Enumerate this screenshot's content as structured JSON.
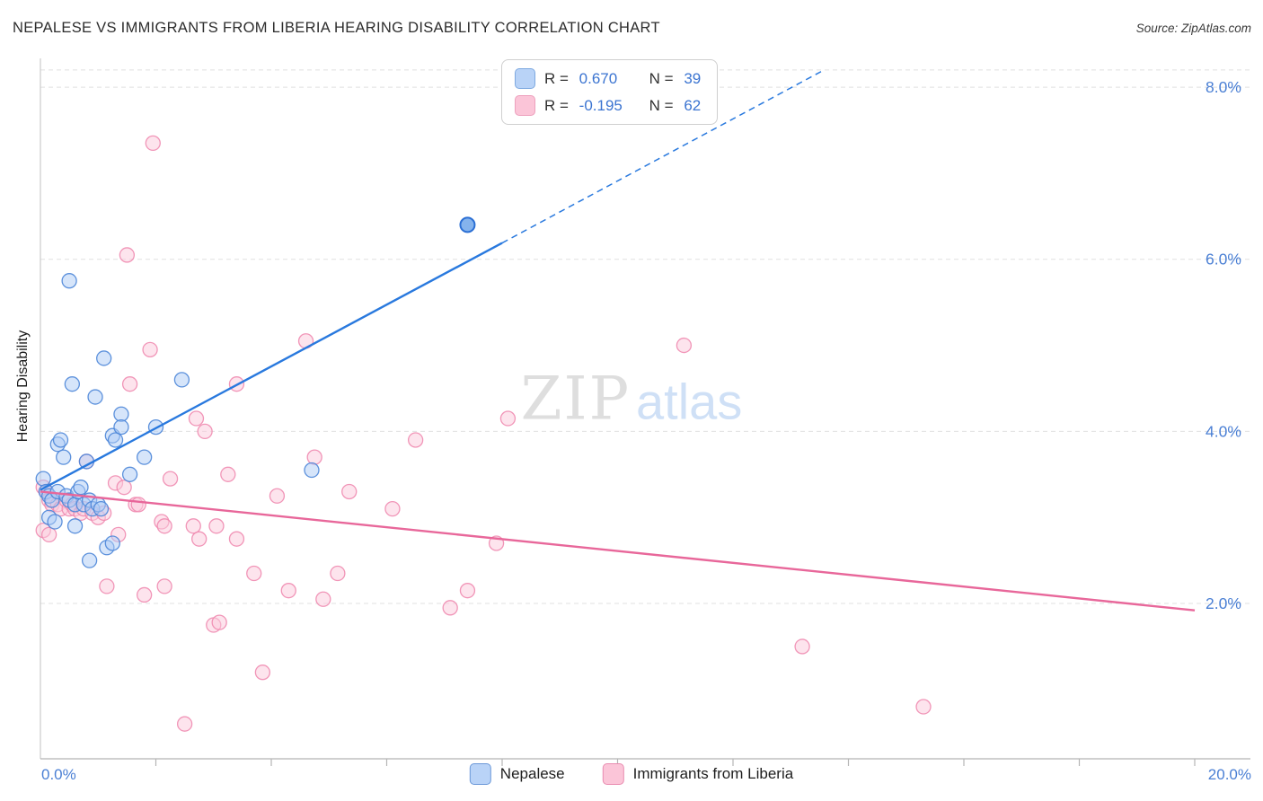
{
  "header": {
    "title": "NEPALESE VS IMMIGRANTS FROM LIBERIA HEARING DISABILITY CORRELATION CHART",
    "source": "Source: ZipAtlas.com"
  },
  "axes": {
    "y_label": "Hearing Disability",
    "x_min_label": "0.0%",
    "x_max_label": "20.0%"
  },
  "watermark": {
    "zip": "ZIP",
    "atlas": "atlas"
  },
  "legend_box": {
    "rows": [
      {
        "r_label": "R = ",
        "r_value": "0.670",
        "n_label": "N = ",
        "n_value": "39",
        "swatch_color": "#b9d3f7"
      },
      {
        "r_label": "R = ",
        "r_value": "-0.195",
        "n_label": "N = ",
        "n_value": "62",
        "swatch_color": "#fbc5d8"
      }
    ]
  },
  "bottom_legend": [
    {
      "label": "Nepalese",
      "color": "#b9d3f7"
    },
    {
      "label": "Immigrants from Liberia",
      "color": "#fbc5d8"
    }
  ],
  "chart_data": {
    "type": "scatter",
    "title": "NEPALESE VS IMMIGRANTS FROM LIBERIA HEARING DISABILITY CORRELATION CHART",
    "ylabel": "Hearing Disability",
    "xlim": [
      0,
      20
    ],
    "ylim": [
      0.195,
      8.335
    ],
    "x_ticks": [
      2,
      4,
      6,
      8,
      10,
      12,
      14,
      16,
      18,
      20
    ],
    "y_ticks": [
      {
        "value": 8,
        "label": "8.0%"
      },
      {
        "value": 6,
        "label": "6.0%"
      },
      {
        "value": 4,
        "label": "4.0%"
      },
      {
        "value": 2,
        "label": "2.0%"
      }
    ],
    "gridlines": [
      2,
      4,
      6,
      8,
      8.2
    ],
    "grid_on": true,
    "legend_position": "bottom",
    "series": [
      {
        "name": "Immigrants from Liberia",
        "r": -0.195,
        "n": 62,
        "fill": "#fbc9db",
        "stroke": "#ef8bb0",
        "points": [
          [
            1.95,
            7.35
          ],
          [
            1.5,
            6.05
          ],
          [
            1.9,
            4.95
          ],
          [
            4.6,
            5.05
          ],
          [
            11.15,
            5.0
          ],
          [
            1.55,
            4.55
          ],
          [
            3.4,
            4.55
          ],
          [
            2.7,
            4.15
          ],
          [
            2.85,
            4.0
          ],
          [
            8.1,
            4.15
          ],
          [
            6.5,
            3.9
          ],
          [
            4.75,
            3.7
          ],
          [
            0.8,
            3.65
          ],
          [
            3.25,
            3.5
          ],
          [
            5.35,
            3.3
          ],
          [
            4.1,
            3.25
          ],
          [
            6.1,
            3.1
          ],
          [
            0.05,
            3.35
          ],
          [
            0.1,
            3.3
          ],
          [
            0.15,
            3.2
          ],
          [
            0.2,
            3.15
          ],
          [
            0.3,
            3.15
          ],
          [
            0.35,
            3.1
          ],
          [
            0.45,
            3.2
          ],
          [
            0.5,
            3.1
          ],
          [
            0.55,
            3.15
          ],
          [
            0.6,
            3.1
          ],
          [
            0.7,
            3.05
          ],
          [
            0.75,
            3.1
          ],
          [
            0.9,
            3.05
          ],
          [
            1.0,
            3.0
          ],
          [
            1.1,
            3.05
          ],
          [
            1.3,
            3.4
          ],
          [
            1.65,
            3.15
          ],
          [
            1.7,
            3.15
          ],
          [
            2.1,
            2.95
          ],
          [
            2.15,
            2.9
          ],
          [
            1.35,
            2.8
          ],
          [
            0.05,
            2.85
          ],
          [
            0.15,
            2.8
          ],
          [
            2.65,
            2.9
          ],
          [
            3.05,
            2.9
          ],
          [
            2.75,
            2.75
          ],
          [
            3.4,
            2.75
          ],
          [
            7.9,
            2.7
          ],
          [
            3.7,
            2.35
          ],
          [
            5.15,
            2.35
          ],
          [
            1.15,
            2.2
          ],
          [
            2.15,
            2.2
          ],
          [
            4.3,
            2.15
          ],
          [
            7.4,
            2.15
          ],
          [
            1.8,
            2.1
          ],
          [
            4.9,
            2.05
          ],
          [
            7.1,
            1.95
          ],
          [
            3.0,
            1.75
          ],
          [
            3.1,
            1.78
          ],
          [
            13.2,
            1.5
          ],
          [
            3.85,
            1.2
          ],
          [
            15.3,
            0.8
          ],
          [
            2.5,
            0.6
          ],
          [
            2.25,
            3.45
          ],
          [
            1.45,
            3.35
          ]
        ]
      },
      {
        "name": "Nepalese",
        "r": 0.67,
        "n": 39,
        "fill": "#aecbf5",
        "stroke": "#4d86d8",
        "highlight": [
          7.4,
          6.4
        ],
        "highlight_fill": "#7fb0ec",
        "highlight_stroke": "#2b6fd4",
        "points": [
          [
            0.05,
            3.45
          ],
          [
            0.1,
            3.3
          ],
          [
            0.15,
            3.25
          ],
          [
            0.2,
            3.2
          ],
          [
            0.3,
            3.3
          ],
          [
            0.3,
            3.85
          ],
          [
            0.35,
            3.9
          ],
          [
            0.4,
            3.7
          ],
          [
            0.45,
            3.25
          ],
          [
            0.5,
            3.2
          ],
          [
            0.5,
            5.75
          ],
          [
            0.55,
            4.55
          ],
          [
            0.6,
            3.15
          ],
          [
            0.65,
            3.3
          ],
          [
            0.7,
            3.35
          ],
          [
            0.75,
            3.15
          ],
          [
            0.8,
            3.65
          ],
          [
            0.85,
            3.2
          ],
          [
            0.85,
            2.5
          ],
          [
            0.9,
            3.1
          ],
          [
            0.95,
            4.4
          ],
          [
            1.0,
            3.15
          ],
          [
            1.05,
            3.1
          ],
          [
            1.1,
            4.85
          ],
          [
            1.15,
            2.65
          ],
          [
            1.25,
            3.95
          ],
          [
            1.25,
            2.7
          ],
          [
            1.3,
            3.9
          ],
          [
            1.4,
            4.2
          ],
          [
            1.4,
            4.05
          ],
          [
            1.55,
            3.5
          ],
          [
            1.8,
            3.7
          ],
          [
            2.0,
            4.05
          ],
          [
            2.45,
            4.6
          ],
          [
            4.7,
            3.55
          ],
          [
            7.4,
            6.4
          ],
          [
            0.15,
            3.0
          ],
          [
            0.25,
            2.95
          ],
          [
            0.6,
            2.9
          ]
        ]
      }
    ],
    "trend_lines": [
      {
        "name": "Nepalese",
        "color": "#2979de",
        "solid": [
          [
            0,
            3.32
          ],
          [
            8.0,
            6.19
          ]
        ],
        "dashed": [
          [
            8.0,
            6.19
          ],
          [
            13.55,
            8.19
          ]
        ]
      },
      {
        "name": "Immigrants from Liberia",
        "color": "#e8679a",
        "solid": [
          [
            0,
            3.3
          ],
          [
            20,
            1.92
          ]
        ]
      }
    ]
  }
}
